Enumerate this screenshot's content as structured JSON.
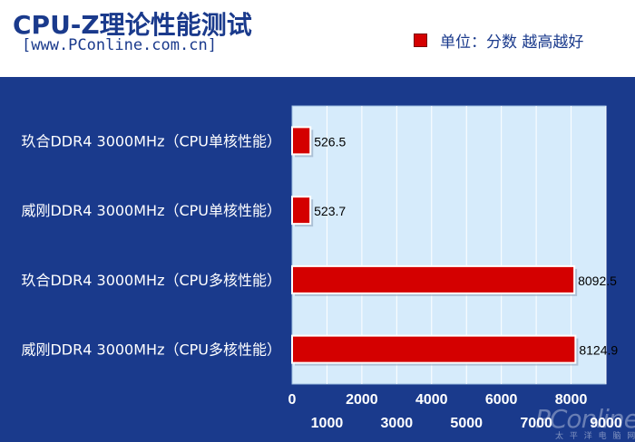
{
  "title": "CPU-Z理论性能测试",
  "subtitle": "[www.PConline.com.cn]",
  "legend": "单位：分数 越高越好",
  "watermark": "PConline",
  "watermark_sub": "太 平 洋 电 脑 网",
  "colors": {
    "bar": "#d40000",
    "background": "#1a3a8c",
    "plot_bg": "#d6ebfb"
  },
  "chart_data": {
    "type": "bar",
    "orientation": "horizontal",
    "categories": [
      "玖合DDR4 3000MHz（CPU单核性能）",
      "威刚DDR4 3000MHz（CPU单核性能）",
      "玖合DDR4 3000MHz（CPU多核性能）",
      "威刚DDR4 3000MHz（CPU多核性能）"
    ],
    "values": [
      526.5,
      523.7,
      8092.5,
      8124.9
    ],
    "value_labels": [
      "526.5",
      "523.7",
      "8092.5",
      "8124.9"
    ],
    "xlim": [
      0,
      9000
    ],
    "ticks_upper": [
      "0",
      "2000",
      "4000",
      "6000",
      "8000"
    ],
    "ticks_lower": [
      "1000",
      "3000",
      "5000",
      "7000",
      "9000"
    ],
    "grid": true
  }
}
